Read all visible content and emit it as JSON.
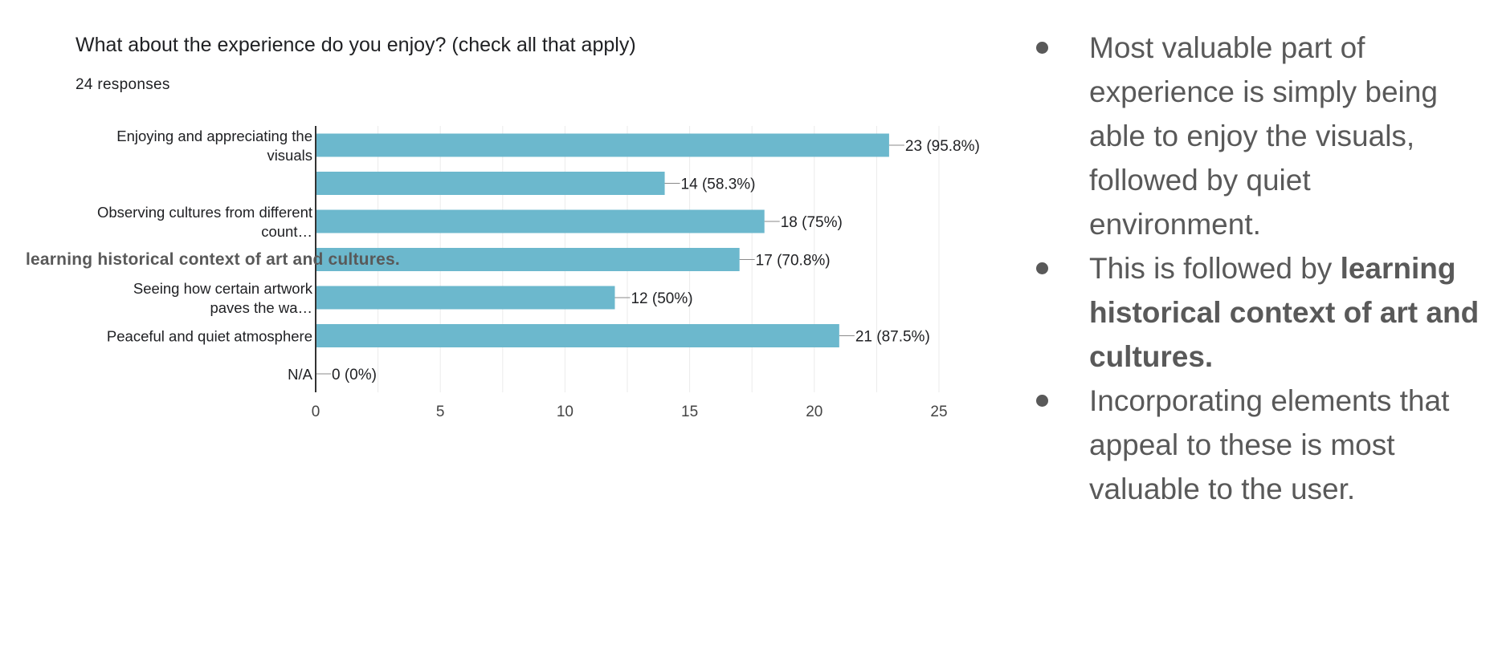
{
  "chart_data": {
    "type": "bar",
    "orientation": "horizontal",
    "title": "What about the experience do you enjoy? (check all that apply)",
    "subtitle": "24 responses",
    "categories": [
      [
        "Enjoying and appreciating the",
        "visuals"
      ],
      [],
      [
        "Observing cultures from different",
        "count…"
      ],
      [],
      [
        "Seeing how certain artwork",
        "paves the wa…"
      ],
      [
        "Peaceful and quiet atmosphere"
      ],
      [
        "N/A"
      ]
    ],
    "values": [
      23,
      14,
      18,
      17,
      12,
      21,
      0
    ],
    "data_labels": [
      "23 (95.8%)",
      "14 (58.3%)",
      "18 (75%)",
      "17 (70.8%)",
      "12 (50%)",
      "21 (87.5%)",
      "0 (0%)"
    ],
    "xlim": [
      0,
      25
    ],
    "xticks": [
      0,
      5,
      10,
      15,
      20,
      25
    ],
    "bar_color": "#6cb8cd",
    "grid": true
  },
  "overlay_label": "learning historical context of art and cultures.",
  "summary": {
    "bullets": [
      {
        "text": "Most valuable part of experience is simply being able to enjoy the visuals, followed by quiet environment."
      },
      {
        "text": "This is followed by ",
        "bold_text": "learning historical context of art and cultures."
      },
      {
        "text": "Incorporating elements that appeal to these is most valuable to the user."
      }
    ]
  },
  "colors": {
    "bar": "#6cb8cd",
    "text_dark": "#202124",
    "text_gray": "#595959",
    "grid": "#ebebeb"
  }
}
